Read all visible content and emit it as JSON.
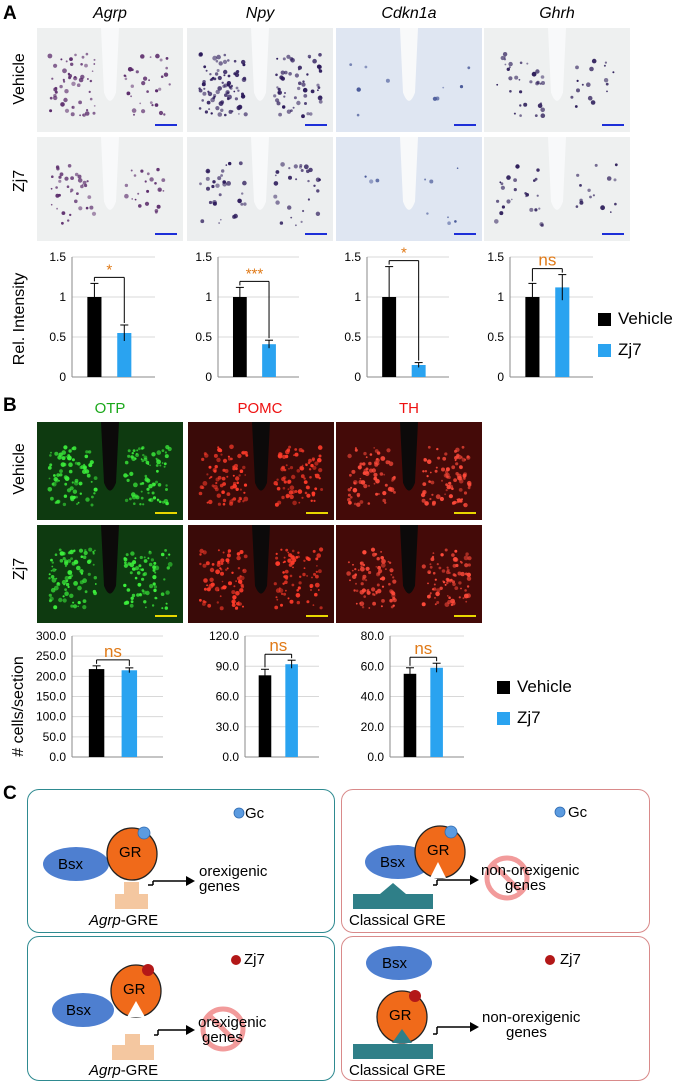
{
  "panels": {
    "a": "A",
    "b": "B",
    "c": "C"
  },
  "panel_a": {
    "genes": [
      "Agrp",
      "Npy",
      "Cdkn1a",
      "Ghrh"
    ],
    "rows": [
      "Vehicle",
      "Zj7"
    ]
  },
  "panel_b": {
    "stains": [
      "OTP",
      "POMC",
      "TH"
    ],
    "stain_colors": [
      "#1aa81a",
      "#ee1111",
      "#ee1111"
    ],
    "rows": [
      "Vehicle",
      "Zj7"
    ]
  },
  "legend": {
    "vehicle": "Vehicle",
    "zj7": "Zj7",
    "vehicle_color": "#000000",
    "zj7_color": "#2aa3f0"
  },
  "chart_data": [
    {
      "type": "bar",
      "panel": "A",
      "categories": [
        "Vehicle",
        "Zj7"
      ],
      "values": [
        1.0,
        0.55
      ],
      "errors": [
        0.17,
        0.1
      ],
      "ylim": [
        0,
        1.5
      ],
      "yticks": [
        "0",
        "0.5",
        "1",
        "1.5"
      ],
      "ylabel": "Rel. Intensity",
      "significance": "*",
      "grid": true
    },
    {
      "type": "bar",
      "panel": "A",
      "categories": [
        "Vehicle",
        "Zj7"
      ],
      "values": [
        1.0,
        0.41
      ],
      "errors": [
        0.12,
        0.05
      ],
      "ylim": [
        0,
        1.5
      ],
      "yticks": [
        "0",
        "0.5",
        "1",
        "1.5"
      ],
      "ylabel": "",
      "significance": "***",
      "grid": true
    },
    {
      "type": "bar",
      "panel": "A",
      "categories": [
        "Vehicle",
        "Zj7"
      ],
      "values": [
        1.0,
        0.15
      ],
      "errors": [
        0.38,
        0.03
      ],
      "ylim": [
        0,
        1.5
      ],
      "yticks": [
        "0",
        "0.5",
        "1",
        "1.5"
      ],
      "ylabel": "",
      "significance": "*",
      "grid": true
    },
    {
      "type": "bar",
      "panel": "A",
      "categories": [
        "Vehicle",
        "Zj7"
      ],
      "values": [
        1.0,
        1.12
      ],
      "errors": [
        0.17,
        0.16
      ],
      "ylim": [
        0,
        1.5
      ],
      "yticks": [
        "0",
        "0.5",
        "1",
        "1.5"
      ],
      "ylabel": "",
      "significance": "ns",
      "grid": true
    },
    {
      "type": "bar",
      "panel": "B",
      "categories": [
        "Vehicle",
        "Zj7"
      ],
      "values": [
        218,
        215
      ],
      "errors": [
        8,
        6
      ],
      "ylim": [
        0,
        300
      ],
      "yticks": [
        "0.0",
        "50.0",
        "100.0",
        "150.0",
        "200.0",
        "250.0",
        "300.0"
      ],
      "ylabel": "# cells/section",
      "significance": "ns",
      "grid": true
    },
    {
      "type": "bar",
      "panel": "B",
      "categories": [
        "Vehicle",
        "Zj7"
      ],
      "values": [
        81,
        92
      ],
      "errors": [
        6,
        4
      ],
      "ylim": [
        0,
        120
      ],
      "yticks": [
        "0.0",
        "30.0",
        "60.0",
        "90.0",
        "120.0"
      ],
      "ylabel": "",
      "significance": "ns",
      "grid": true
    },
    {
      "type": "bar",
      "panel": "B",
      "categories": [
        "Vehicle",
        "Zj7"
      ],
      "values": [
        55,
        59
      ],
      "errors": [
        4,
        3
      ],
      "ylim": [
        0,
        80
      ],
      "yticks": [
        "0.0",
        "20.0",
        "40.0",
        "60.0",
        "80.0"
      ],
      "ylabel": "",
      "significance": "ns",
      "grid": true
    }
  ],
  "panel_c": {
    "gc": "Gc",
    "zj7": "Zj7",
    "bsx": "Bsx",
    "gr": "GR",
    "orexigenic": [
      "orexigenic",
      "genes"
    ],
    "non_orexigenic": [
      "non-orexigenic",
      "genes"
    ],
    "agrp_gre_italic": "Agrp",
    "agrp_gre_suffix": "-GRE",
    "classical_gre": "Classical GRE"
  }
}
